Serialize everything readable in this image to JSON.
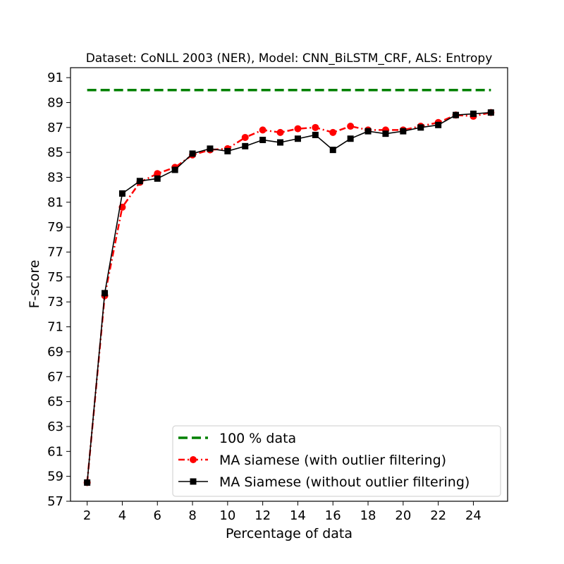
{
  "chart_data": {
    "type": "line",
    "title": "Dataset: CoNLL 2003 (NER), Model: CNN_BiLSTM_CRF, ALS: Entropy",
    "xlabel": "Percentage of data",
    "ylabel": "F-score",
    "xlim": [
      1.05,
      25.95
    ],
    "ylim": [
      57,
      91.8
    ],
    "xticks": [
      "2",
      "4",
      "6",
      "8",
      "10",
      "12",
      "14",
      "16",
      "18",
      "20",
      "22",
      "24"
    ],
    "yticks": [
      "57",
      "59",
      "61",
      "63",
      "65",
      "67",
      "69",
      "71",
      "73",
      "75",
      "77",
      "79",
      "81",
      "83",
      "85",
      "87",
      "89",
      "91"
    ],
    "grid": false,
    "legend_position": "lower-right",
    "series": [
      {
        "name": "100 % data",
        "style": "dashed",
        "marker": "none",
        "color": "#008000",
        "x": [
          2,
          25
        ],
        "y": [
          90.0,
          90.0
        ]
      },
      {
        "name": "MA siamese (with outlier filtering)",
        "style": "dashdot",
        "marker": "circle",
        "color": "#ff0000",
        "x": [
          2,
          3,
          4,
          5,
          6,
          7,
          8,
          9,
          10,
          11,
          12,
          13,
          14,
          15,
          16,
          17,
          18,
          19,
          20,
          21,
          22,
          23,
          24,
          25
        ],
        "y": [
          58.5,
          73.5,
          80.6,
          82.6,
          83.3,
          83.8,
          84.8,
          85.2,
          85.3,
          86.2,
          86.8,
          86.6,
          86.9,
          87.0,
          86.6,
          87.1,
          86.8,
          86.8,
          86.8,
          87.1,
          87.4,
          88.0,
          87.9,
          88.2
        ]
      },
      {
        "name": "MA Siamese (without outlier filtering)",
        "style": "solid",
        "marker": "square",
        "color": "#000000",
        "x": [
          2,
          3,
          4,
          5,
          6,
          7,
          8,
          9,
          10,
          11,
          12,
          13,
          14,
          15,
          16,
          17,
          18,
          19,
          20,
          21,
          22,
          23,
          24,
          25
        ],
        "y": [
          58.5,
          73.7,
          81.7,
          82.7,
          82.9,
          83.6,
          84.9,
          85.3,
          85.1,
          85.5,
          86.0,
          85.8,
          86.1,
          86.4,
          85.2,
          86.1,
          86.7,
          86.5,
          86.7,
          87.0,
          87.2,
          88.0,
          88.1,
          88.2
        ]
      }
    ]
  }
}
